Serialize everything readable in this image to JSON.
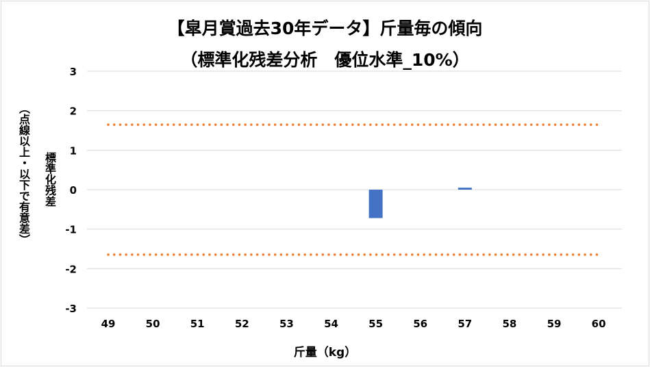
{
  "chart_data": {
    "type": "bar",
    "title_line1": "【皐月賞過去30年データ】斤量毎の傾向",
    "title_line2": "（標準化残差分析　優位水準_10%）",
    "ylabel_main": "標準化残差",
    "ylabel_sub": "（点線以上・以下で有意差）",
    "xlabel": "斤量（kg）",
    "categories": [
      "49",
      "50",
      "51",
      "52",
      "53",
      "54",
      "55",
      "56",
      "57",
      "58",
      "59",
      "60"
    ],
    "values": [
      0,
      0,
      0,
      0,
      0,
      0,
      -0.72,
      0,
      0.05,
      0,
      0,
      0
    ],
    "ylim": [
      -3,
      3
    ],
    "yticks": [
      "-3",
      "-2",
      "-1",
      "0",
      "1",
      "2",
      "3"
    ],
    "threshold_upper": 1.645,
    "threshold_lower": -1.645,
    "grid": true,
    "legend": "none",
    "bar_color": "#4472c4",
    "threshold_color": "#ed7d31",
    "grid_color": "#d9d9d9"
  }
}
